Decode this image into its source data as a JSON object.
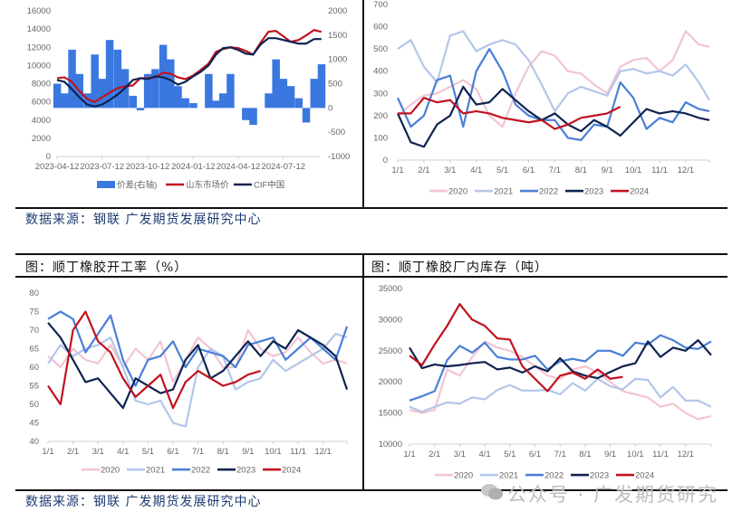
{
  "source_text": "数据来源：钢联 广发期货发展研究中心",
  "panels": {
    "bottom_left_title": "图：顺丁橡胶开工率（%）",
    "bottom_right_title": "图：顺丁橡胶厂内库存（吨）"
  },
  "watermark": "公众号 · 广发期货研究",
  "colors": {
    "2020": "#f3c4d2",
    "2021": "#b3c6ea",
    "2022": "#4a7fd6",
    "2023": "#0f2350",
    "2024": "#c1121f",
    "spread": "#3a78e0"
  },
  "chart_data": [
    {
      "type": "bar+line",
      "title": "",
      "ylim": [
        0,
        16000
      ],
      "y2lim": [
        -1000,
        2000
      ],
      "yticks": [
        "0",
        "2000",
        "4000",
        "6000",
        "8000",
        "10000",
        "12000",
        "14000",
        "16000"
      ],
      "y2ticks": [
        "-1000",
        "-500",
        "0",
        "500",
        "1000",
        "1500",
        "2000"
      ],
      "xticks": [
        "2023-04-12",
        "2023-07-12",
        "2023-10-12",
        "2024-01-12",
        "2024-04-12",
        "2024-07-12"
      ],
      "legend_position": "bottom",
      "x": [
        "2023-04-12",
        "2023-04-27",
        "2023-05-12",
        "2023-05-27",
        "2023-06-12",
        "2023-06-27",
        "2023-07-12",
        "2023-07-27",
        "2023-08-12",
        "2023-08-27",
        "2023-09-12",
        "2023-09-27",
        "2023-10-12",
        "2023-10-27",
        "2023-11-12",
        "2023-11-27",
        "2023-12-12",
        "2023-12-27",
        "2024-01-12",
        "2024-01-27",
        "2024-02-12",
        "2024-02-27",
        "2024-03-12",
        "2024-03-27",
        "2024-04-12",
        "2024-04-27",
        "2024-05-12",
        "2024-05-27",
        "2024-06-12",
        "2024-06-27",
        "2024-07-12",
        "2024-07-27",
        "2024-08-12",
        "2024-08-27",
        "2024-09-12",
        "2024-09-27"
      ],
      "series": [
        {
          "name": "价差(右轴)",
          "type": "bar",
          "axis": "right",
          "values": [
            500,
            300,
            1200,
            700,
            300,
            1100,
            600,
            1400,
            1200,
            800,
            250,
            -50,
            700,
            800,
            1300,
            1000,
            450,
            200,
            100,
            0,
            700,
            150,
            300,
            700,
            0,
            -250,
            -350,
            0,
            300,
            1000,
            600,
            450,
            200,
            -300,
            600,
            900
          ]
        },
        {
          "name": "山东市场价",
          "type": "line",
          "axis": "left",
          "values": [
            8600,
            8700,
            8200,
            7200,
            6300,
            6000,
            6500,
            7000,
            7500,
            7700,
            7800,
            8600,
            8600,
            8700,
            9200,
            9100,
            8700,
            8500,
            8900,
            9500,
            10200,
            11500,
            11800,
            12000,
            11900,
            11600,
            11200,
            12500,
            13700,
            13800,
            13200,
            12600,
            12800,
            13300,
            13900,
            13700
          ]
        },
        {
          "name": "CIF中国",
          "type": "line",
          "axis": "left",
          "values": [
            8400,
            8200,
            7400,
            6500,
            5700,
            5500,
            5700,
            6200,
            6800,
            7500,
            8400,
            8600,
            8500,
            8800,
            8700,
            8400,
            7900,
            8200,
            8800,
            9300,
            10000,
            11200,
            11900,
            12000,
            11700,
            11300,
            11200,
            12300,
            13000,
            13000,
            12800,
            12600,
            12400,
            12400,
            12900,
            12900
          ]
        }
      ]
    },
    {
      "type": "line",
      "title": "",
      "ylim": [
        0,
        700
      ],
      "yticks": [
        "0",
        "100",
        "200",
        "300",
        "400",
        "500",
        "600",
        "700"
      ],
      "xticks": [
        "1/1",
        "2/1",
        "3/1",
        "4/1",
        "5/1",
        "6/1",
        "7/1",
        "8/1",
        "9/1",
        "10/1",
        "11/1",
        "12/1"
      ],
      "legend_position": "bottom",
      "x": [
        "1/1",
        "1/15",
        "2/1",
        "2/15",
        "3/1",
        "3/15",
        "4/1",
        "4/15",
        "5/1",
        "5/15",
        "6/1",
        "6/15",
        "7/1",
        "7/15",
        "8/1",
        "8/15",
        "9/1",
        "9/15",
        "10/1",
        "10/15",
        "11/1",
        "11/15",
        "12/1",
        "12/15",
        "12/31"
      ],
      "series": [
        {
          "name": "2020",
          "values": [
            200,
            250,
            290,
            300,
            330,
            360,
            320,
            200,
            150,
            300,
            420,
            490,
            470,
            400,
            390,
            340,
            300,
            420,
            450,
            460,
            400,
            450,
            580,
            520,
            510
          ]
        },
        {
          "name": "2021",
          "values": [
            500,
            540,
            420,
            350,
            560,
            580,
            490,
            520,
            540,
            520,
            450,
            340,
            220,
            300,
            330,
            310,
            290,
            400,
            410,
            390,
            400,
            380,
            430,
            350,
            270
          ]
        },
        {
          "name": "2022",
          "values": [
            280,
            150,
            200,
            360,
            380,
            150,
            400,
            500,
            400,
            250,
            200,
            180,
            180,
            100,
            90,
            160,
            150,
            350,
            280,
            140,
            190,
            170,
            260,
            230,
            220
          ]
        },
        {
          "name": "2023",
          "values": [
            210,
            80,
            60,
            160,
            200,
            330,
            250,
            260,
            320,
            270,
            220,
            180,
            210,
            160,
            130,
            180,
            150,
            110,
            170,
            230,
            210,
            220,
            210,
            190,
            180
          ]
        },
        {
          "name": "2024",
          "values": [
            210,
            210,
            280,
            260,
            270,
            210,
            220,
            210,
            190,
            180,
            170,
            180,
            140,
            160,
            190,
            200,
            210,
            240,
            null,
            null,
            null,
            null,
            null,
            null,
            null
          ]
        }
      ]
    },
    {
      "type": "line",
      "title": "",
      "ylim": [
        40,
        80
      ],
      "yticks": [
        "40",
        "45",
        "50",
        "55",
        "60",
        "65",
        "70",
        "75",
        "80"
      ],
      "xticks": [
        "1/1",
        "2/1",
        "3/1",
        "4/1",
        "5/1",
        "6/1",
        "7/1",
        "8/1",
        "9/1",
        "10/1",
        "11/1",
        "12/1"
      ],
      "legend_position": "bottom",
      "x": [
        "1/1",
        "1/15",
        "2/1",
        "2/15",
        "3/1",
        "3/15",
        "4/1",
        "4/15",
        "5/1",
        "5/15",
        "6/1",
        "6/15",
        "7/1",
        "7/15",
        "8/1",
        "8/15",
        "9/1",
        "9/15",
        "10/1",
        "10/15",
        "11/1",
        "11/15",
        "12/1",
        "12/15",
        "12/31"
      ],
      "series": [
        {
          "name": "2020",
          "values": [
            63,
            60,
            65,
            62,
            61,
            66,
            60,
            65,
            62,
            67,
            56,
            62,
            68,
            65,
            60,
            60,
            70,
            65,
            63,
            64,
            68,
            64,
            61,
            62,
            61
          ]
        },
        {
          "name": "2021",
          "values": [
            61,
            66,
            63,
            65,
            66,
            68,
            60,
            51,
            50,
            51,
            45,
            44,
            60,
            65,
            63,
            54,
            56,
            57,
            62,
            59,
            61,
            63,
            65,
            69,
            68
          ]
        },
        {
          "name": "2022",
          "values": [
            73,
            75,
            73,
            64,
            69,
            74,
            62,
            55,
            62,
            63,
            67,
            60,
            65,
            64,
            63,
            60,
            66,
            67,
            68,
            62,
            65,
            68,
            65,
            62,
            71
          ]
        },
        {
          "name": "2023",
          "values": [
            72,
            68,
            62,
            56,
            57,
            53,
            49,
            57,
            55,
            53,
            54,
            62,
            66,
            57,
            59,
            63,
            67,
            63,
            67,
            65,
            70,
            68,
            66,
            63,
            54
          ]
        },
        {
          "name": "2024",
          "values": [
            55,
            50,
            70,
            75,
            67,
            64,
            57,
            52,
            55,
            58,
            49,
            56,
            59,
            57,
            55,
            56,
            58,
            59,
            null,
            null,
            null,
            null,
            null,
            null,
            null
          ]
        }
      ]
    },
    {
      "type": "line",
      "title": "",
      "ylim": [
        10000,
        35000
      ],
      "yticks": [
        "10000",
        "15000",
        "20000",
        "25000",
        "30000",
        "35000"
      ],
      "xticks": [
        "1/1",
        "2/1",
        "3/1",
        "4/1",
        "5/1",
        "6/1",
        "7/1",
        "8/1",
        "9/1",
        "10/1",
        "11/1",
        "12/1"
      ],
      "legend_position": "bottom",
      "x": [
        "1/1",
        "1/15",
        "2/1",
        "2/15",
        "3/1",
        "3/15",
        "4/1",
        "4/15",
        "5/1",
        "5/15",
        "6/1",
        "6/15",
        "7/1",
        "7/15",
        "8/1",
        "8/15",
        "9/1",
        "9/15",
        "10/1",
        "10/15",
        "11/1",
        "11/15",
        "12/1",
        "12/15",
        "12/31"
      ],
      "series": [
        {
          "name": "2020",
          "values": [
            15500,
            15000,
            15500,
            22000,
            21000,
            24000,
            26500,
            25500,
            25000,
            24000,
            22500,
            21000,
            20500,
            22000,
            22500,
            21500,
            20000,
            18500,
            18000,
            17500,
            16000,
            16500,
            15000,
            14000,
            14500
          ]
        },
        {
          "name": "2021",
          "values": [
            16000,
            15200,
            16000,
            16700,
            16500,
            17500,
            17200,
            18700,
            19500,
            18600,
            18600,
            18700,
            18000,
            19800,
            18600,
            20500,
            19300,
            18800,
            20500,
            20300,
            17500,
            19200,
            17000,
            17000,
            16000
          ]
        },
        {
          "name": "2022",
          "values": [
            17000,
            17700,
            18500,
            23500,
            25800,
            24700,
            26300,
            24000,
            23600,
            23600,
            24200,
            22000,
            23300,
            23700,
            23300,
            25000,
            25000,
            24200,
            26300,
            26000,
            27500,
            26700,
            25500,
            25300,
            26500
          ]
        },
        {
          "name": "2023",
          "values": [
            25500,
            22200,
            22800,
            22500,
            22700,
            23000,
            23200,
            22000,
            22300,
            21500,
            22500,
            21700,
            23800,
            21700,
            21000,
            20600,
            21600,
            22500,
            23000,
            26500,
            24000,
            25500,
            25000,
            26700,
            24300
          ]
        },
        {
          "name": "2024",
          "values": [
            24200,
            22700,
            26000,
            29000,
            32500,
            30000,
            29000,
            27000,
            26800,
            22500,
            20500,
            18500,
            21000,
            21500,
            20500,
            22000,
            20500,
            20800,
            null,
            null,
            null,
            null,
            null,
            null,
            null
          ]
        }
      ]
    }
  ]
}
